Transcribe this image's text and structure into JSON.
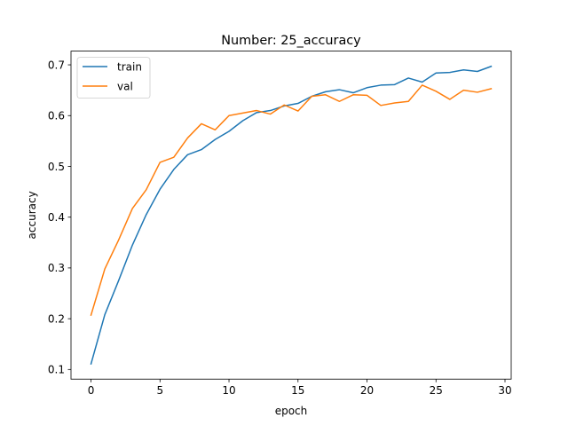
{
  "chart_data": {
    "type": "line",
    "title": "Number: 25_accuracy",
    "xlabel": "epoch",
    "ylabel": "accuracy",
    "xlim": [
      -1.45,
      30.45
    ],
    "ylim": [
      0.081,
      0.727
    ],
    "xticks": [
      0,
      5,
      10,
      15,
      20,
      25,
      30
    ],
    "yticks": [
      0.1,
      0.2,
      0.3,
      0.4,
      0.5,
      0.6,
      0.7
    ],
    "x": [
      0,
      1,
      2,
      3,
      4,
      5,
      6,
      7,
      8,
      9,
      10,
      11,
      12,
      13,
      14,
      15,
      16,
      17,
      18,
      19,
      20,
      21,
      22,
      23,
      24,
      25,
      26,
      27,
      28,
      29
    ],
    "legend_position": "upper-left",
    "grid": false,
    "series": [
      {
        "name": "train",
        "color": "#1f77b4",
        "values": [
          0.111,
          0.208,
          0.275,
          0.345,
          0.405,
          0.455,
          0.494,
          0.523,
          0.533,
          0.553,
          0.569,
          0.59,
          0.606,
          0.61,
          0.619,
          0.624,
          0.638,
          0.647,
          0.651,
          0.645,
          0.655,
          0.66,
          0.661,
          0.674,
          0.666,
          0.684,
          0.685,
          0.69,
          0.687,
          0.697
        ]
      },
      {
        "name": "val",
        "color": "#ff7f0e",
        "values": [
          0.207,
          0.298,
          0.355,
          0.417,
          0.454,
          0.508,
          0.518,
          0.556,
          0.584,
          0.572,
          0.6,
          0.605,
          0.61,
          0.603,
          0.621,
          0.609,
          0.638,
          0.641,
          0.628,
          0.641,
          0.64,
          0.62,
          0.625,
          0.628,
          0.66,
          0.648,
          0.632,
          0.65,
          0.646,
          0.653
        ]
      }
    ]
  }
}
